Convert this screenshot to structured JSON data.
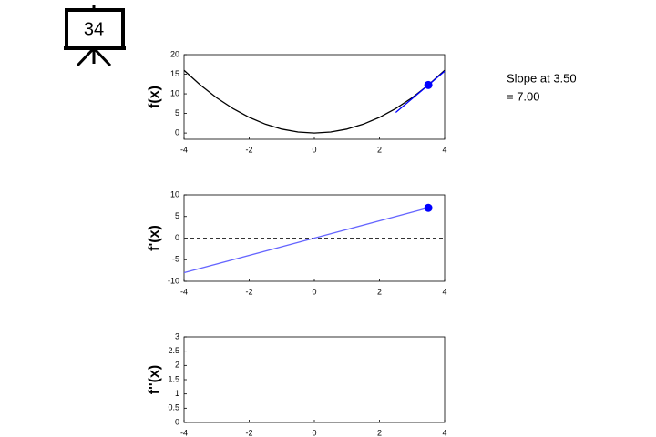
{
  "slide_number": "34",
  "chart_data": [
    {
      "type": "line",
      "ylabel": "f(x)",
      "xlim": [
        -4,
        4
      ],
      "xticks": [
        -4,
        -2,
        0,
        2,
        4
      ],
      "ylim": [
        -1.6,
        20
      ],
      "yticks": [
        0,
        5,
        10,
        15,
        20
      ],
      "series": [
        {
          "color": "#000000",
          "x": [
            -4,
            -3.5,
            -3,
            -2.5,
            -2,
            -1.5,
            -1,
            -0.5,
            0,
            0.5,
            1,
            1.5,
            2,
            2.5,
            3,
            3.5,
            4
          ],
          "values": [
            16,
            12.25,
            9,
            6.25,
            4,
            2.25,
            1,
            0.25,
            0,
            0.25,
            1,
            2.25,
            4,
            6.25,
            9,
            12.25,
            16
          ]
        },
        {
          "color": "#0000ff",
          "x": [
            2.5,
            4
          ],
          "values": [
            5.25,
            15.75
          ]
        },
        {
          "color": "#0000ff",
          "marker": true,
          "x": [
            3.5
          ],
          "values": [
            12.25
          ]
        }
      ],
      "annotation": [
        "Slope at 3.50",
        "= 7.00"
      ]
    },
    {
      "type": "line",
      "ylabel": "f'(x)",
      "xlim": [
        -4,
        4
      ],
      "xticks": [
        -4,
        -2,
        0,
        2,
        4
      ],
      "ylim": [
        -10,
        10
      ],
      "yticks": [
        -10,
        -5,
        0,
        5,
        10
      ],
      "reference_y": 0,
      "series": [
        {
          "color": "#6666ff",
          "x": [
            -4,
            3.5
          ],
          "values": [
            -8,
            7
          ]
        },
        {
          "color": "#0000ff",
          "marker": true,
          "x": [
            3.5
          ],
          "values": [
            7
          ]
        }
      ]
    },
    {
      "type": "line",
      "ylabel": "f''(x)",
      "xlim": [
        -4,
        4
      ],
      "xticks": [
        -4,
        -2,
        0,
        2,
        4
      ],
      "ylim": [
        0,
        3
      ],
      "yticks": [
        0,
        0.5,
        1,
        1.5,
        2,
        2.5,
        3
      ],
      "series": []
    }
  ]
}
